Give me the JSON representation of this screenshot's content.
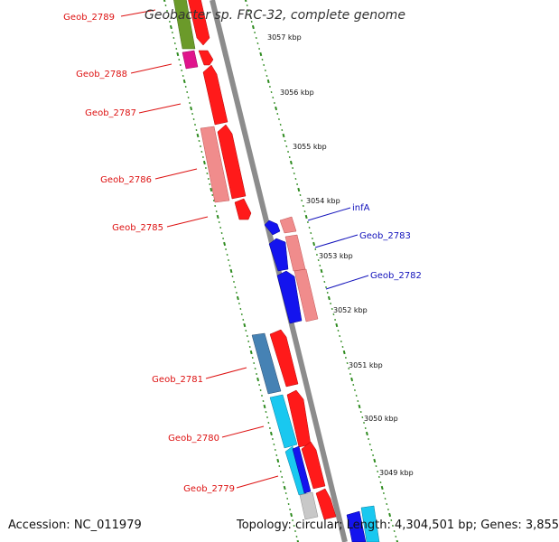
{
  "title": "Geobacter sp. FRC-32, complete genome",
  "footer": {
    "accession": "Accession: NC_011979",
    "summary": "Topology: circular; Length: 4,304,501 bp; Genes: 3,855"
  },
  "colors": {
    "backbone": "#8c8c8c",
    "tick": "#2e8b1f",
    "left_label": "#dd1111",
    "right_label": "#1111bb",
    "red": "#ff1a1a",
    "pink": "#f08c8c",
    "blue": "#1414ee",
    "steelblue": "#4682b4",
    "cyan": "#19c8f0",
    "green": "#6b9a2a",
    "magenta": "#e0148c",
    "gray": "#c8c8c8"
  },
  "scale_labels": [
    "3057 kbp",
    "3056 kbp",
    "3055 kbp",
    "3054 kbp",
    "3053 kbp",
    "3052 kbp",
    "3051 kbp",
    "3050 kbp",
    "3049 kbp"
  ],
  "left_genes": [
    {
      "id": "geob-2789",
      "label": "Geob_2789"
    },
    {
      "id": "geob-2788",
      "label": "Geob_2788"
    },
    {
      "id": "geob-2787",
      "label": "Geob_2787"
    },
    {
      "id": "geob-2786",
      "label": "Geob_2786"
    },
    {
      "id": "geob-2785",
      "label": "Geob_2785"
    },
    {
      "id": "geob-2781",
      "label": "Geob_2781"
    },
    {
      "id": "geob-2780",
      "label": "Geob_2780"
    },
    {
      "id": "geob-2779",
      "label": "Geob_2779"
    }
  ],
  "right_genes": [
    {
      "id": "infa",
      "label": "infA"
    },
    {
      "id": "geob-2783",
      "label": "Geob_2783"
    },
    {
      "id": "geob-2782",
      "label": "Geob_2782"
    }
  ]
}
